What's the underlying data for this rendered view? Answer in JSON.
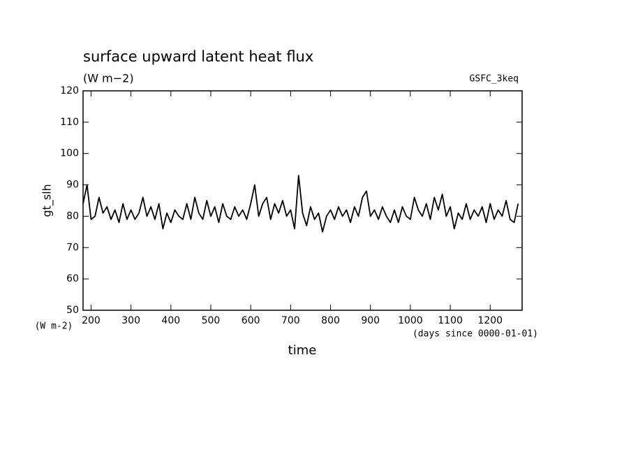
{
  "chart_data": {
    "type": "line",
    "title": "surface upward latent heat flux",
    "subtitle": "(W m−2)",
    "annotation": "GSFC_3keq",
    "ylabel": "gt_slh",
    "yunit": "(W m-2)",
    "xunit": "(days since 0000-01-01)",
    "xlabel": "time",
    "x": [
      180,
      190,
      200,
      210,
      220,
      230,
      240,
      250,
      260,
      270,
      280,
      290,
      300,
      310,
      320,
      330,
      340,
      350,
      360,
      370,
      380,
      390,
      400,
      410,
      420,
      430,
      440,
      450,
      460,
      470,
      480,
      490,
      500,
      510,
      520,
      530,
      540,
      550,
      560,
      570,
      580,
      590,
      600,
      610,
      620,
      630,
      640,
      650,
      660,
      670,
      680,
      690,
      700,
      710,
      720,
      730,
      740,
      750,
      760,
      770,
      780,
      790,
      800,
      810,
      820,
      830,
      840,
      850,
      860,
      870,
      880,
      890,
      900,
      910,
      920,
      930,
      940,
      950,
      960,
      970,
      980,
      990,
      1000,
      1010,
      1020,
      1030,
      1040,
      1050,
      1060,
      1070,
      1080,
      1090,
      1100,
      1110,
      1120,
      1130,
      1140,
      1150,
      1160,
      1170,
      1180,
      1190,
      1200,
      1210,
      1220,
      1230,
      1240,
      1250,
      1260,
      1270
    ],
    "series": [
      {
        "name": "gt_slh",
        "color": "#000000",
        "values": [
          84,
          90,
          79,
          80,
          86,
          81,
          83,
          79,
          82,
          78,
          84,
          79,
          82,
          79,
          81,
          86,
          80,
          83,
          79,
          84,
          76,
          81,
          78,
          82,
          80,
          79,
          84,
          79,
          86,
          81,
          79,
          85,
          80,
          83,
          78,
          84,
          80,
          79,
          83,
          80,
          82,
          79,
          84,
          90,
          80,
          84,
          86,
          79,
          84,
          81,
          85,
          80,
          82,
          76,
          93,
          81,
          77,
          83,
          79,
          81,
          75,
          80,
          82,
          79,
          83,
          80,
          82,
          78,
          83,
          80,
          86,
          88,
          80,
          82,
          79,
          83,
          80,
          78,
          82,
          78,
          83,
          80,
          79,
          86,
          82,
          80,
          84,
          79,
          86,
          82,
          87,
          80,
          83,
          76,
          81,
          79,
          84,
          79,
          82,
          80,
          83,
          78,
          84,
          79,
          82,
          80,
          85,
          79,
          78,
          84
        ]
      }
    ],
    "xlim": [
      180,
      1280
    ],
    "xticks": [
      200,
      300,
      400,
      500,
      600,
      700,
      800,
      900,
      1000,
      1100,
      1200
    ],
    "ylim": [
      50,
      120
    ],
    "yticks": [
      50,
      60,
      70,
      80,
      90,
      100,
      110,
      120
    ]
  }
}
